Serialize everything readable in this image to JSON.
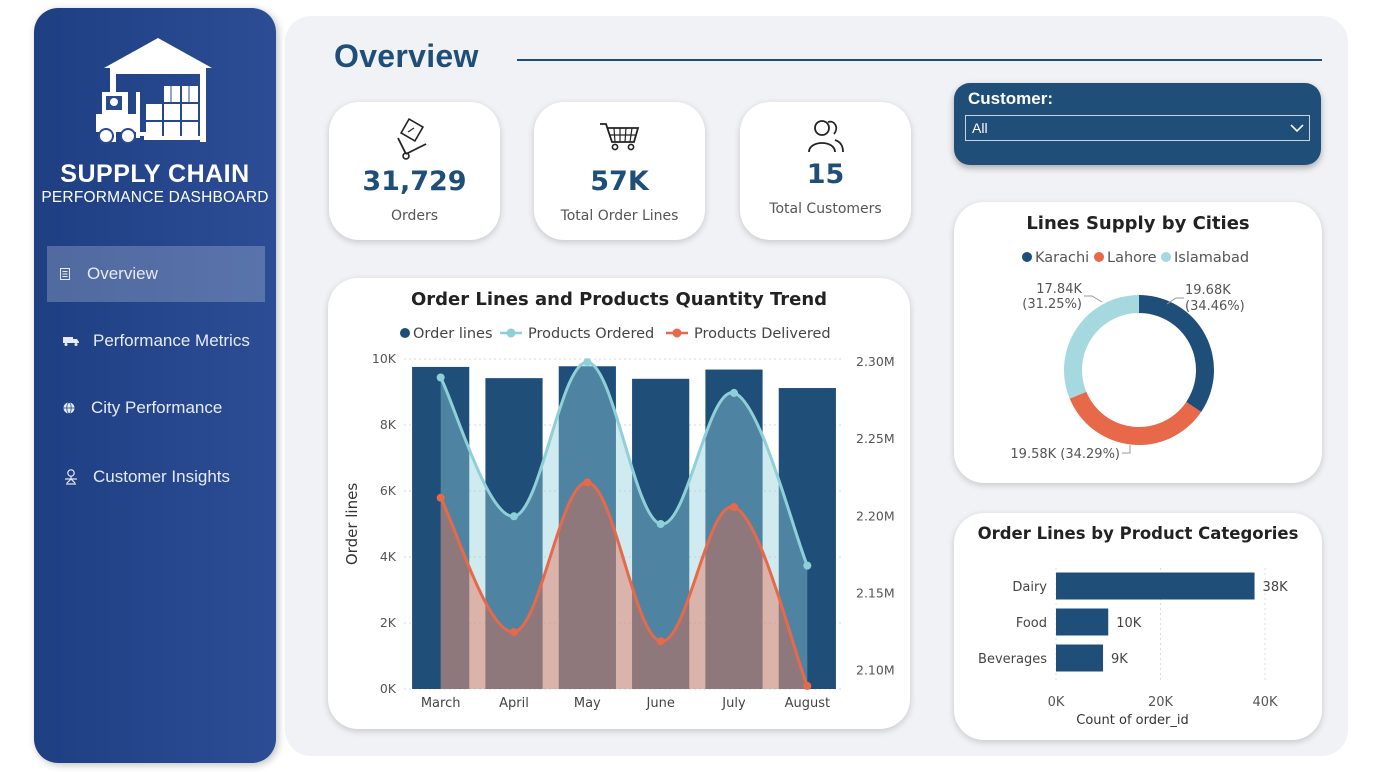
{
  "sidebar": {
    "brand_title": "SUPPLY CHAIN",
    "brand_subtitle": "PERFORMANCE DASHBOARD",
    "nav": [
      {
        "label": "Overview",
        "icon": "document-icon",
        "active": true
      },
      {
        "label": "Performance Metrics",
        "icon": "truck-icon",
        "active": false
      },
      {
        "label": "City Performance",
        "icon": "globe-icon",
        "active": false
      },
      {
        "label": "Customer Insights",
        "icon": "person-icon",
        "active": false
      }
    ]
  },
  "header": {
    "title": "Overview"
  },
  "kpis": [
    {
      "value": "31,729",
      "label": "Orders",
      "icon": "package-cart-icon"
    },
    {
      "value": "57K",
      "label": "Total Order Lines",
      "icon": "shopping-cart-icon"
    },
    {
      "value": "15",
      "label": "Total Customers",
      "icon": "users-icon"
    }
  ],
  "filter": {
    "label": "Customer:",
    "selected": "All"
  },
  "colors": {
    "navy": "#1f4e79",
    "order_lines": "#1f4e79",
    "products_ordered": "#8fd0d8",
    "products_delivered": "#e8694a",
    "karachi": "#1f4e79",
    "lahore": "#e8694a",
    "islamabad": "#a6d8df"
  },
  "chart_data": [
    {
      "type": "bar",
      "title": "Order Lines and Products Quantity Trend",
      "categories": [
        "March",
        "April",
        "May",
        "June",
        "July",
        "August"
      ],
      "series": [
        {
          "name": "Order lines",
          "type": "bar",
          "axis": "left",
          "values": [
            9760,
            9420,
            9780,
            9400,
            9680,
            9120
          ]
        },
        {
          "name": "Products Ordered",
          "type": "area-line",
          "axis": "right",
          "values": [
            2290000,
            2200000,
            2300000,
            2195000,
            2280000,
            2168000
          ]
        },
        {
          "name": "Products Delivered",
          "type": "area-line",
          "axis": "right",
          "values": [
            2212000,
            2125000,
            2222000,
            2119000,
            2206000,
            2090000
          ]
        }
      ],
      "ylabel": "Order lines",
      "y_ticks": [
        "10K",
        "8K",
        "6K",
        "4K",
        "2K",
        "0K"
      ],
      "y2_ticks": [
        "2.30M",
        "2.25M",
        "2.20M",
        "2.15M",
        "2.10M"
      ],
      "ylim": [
        0,
        10000
      ],
      "y2lim": [
        2088000,
        2302000
      ],
      "legend": "top"
    },
    {
      "type": "pie",
      "title": "Lines Supply by Cities",
      "donut": true,
      "slices": [
        {
          "name": "Karachi",
          "value": 19.68,
          "label": "19.68K",
          "pct": "(34.46%)"
        },
        {
          "name": "Lahore",
          "value": 19.58,
          "label": "19.58K (34.29%)",
          "pct": ""
        },
        {
          "name": "Islamabad",
          "value": 17.84,
          "label": "17.84K",
          "pct": "(31.25%)"
        }
      ],
      "legend": "top"
    },
    {
      "type": "bar",
      "orientation": "horizontal",
      "title": "Order Lines by Product Categories",
      "categories": [
        "Dairy",
        "Food",
        "Beverages"
      ],
      "values": [
        38000,
        10000,
        9000
      ],
      "value_labels": [
        "38K",
        "10K",
        "9K"
      ],
      "x_ticks": [
        "0K",
        "20K",
        "40K"
      ],
      "xlabel": "Count of order_id",
      "xlim": [
        0,
        40000
      ]
    }
  ]
}
